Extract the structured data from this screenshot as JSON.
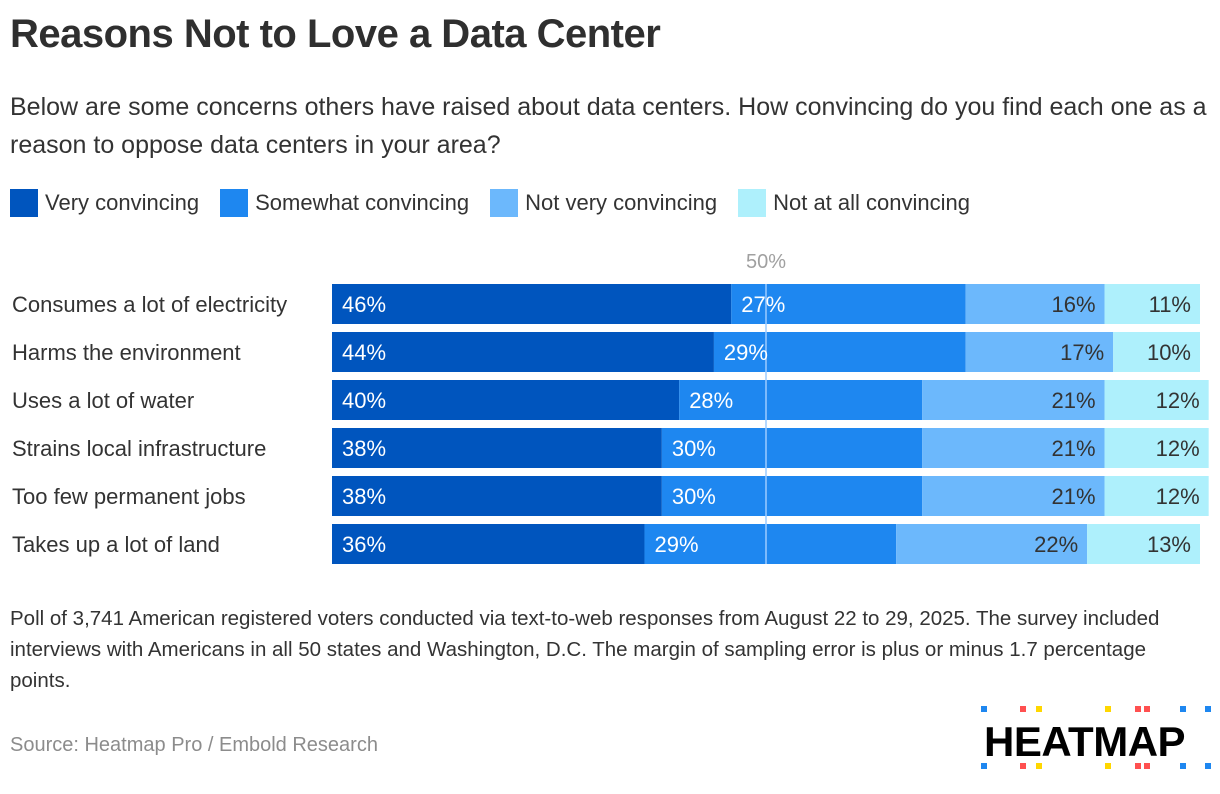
{
  "header": {
    "title": "Reasons Not to Love a Data Center",
    "subtitle": "Below are some concerns others have raised about data centers. How convincing do you find each one as a reason to oppose data centers in your area?"
  },
  "legend": [
    {
      "label": "Very convincing",
      "color": "#0055be"
    },
    {
      "label": "Somewhat convincing",
      "color": "#1e87f0"
    },
    {
      "label": "Not very convincing",
      "color": "#6cb8fc"
    },
    {
      "label": "Not at all convincing",
      "color": "#aef0fc"
    }
  ],
  "chart_data": {
    "type": "bar",
    "orientation": "horizontal",
    "stacked": true,
    "title": "Reasons Not to Love a Data Center",
    "xlabel": "",
    "ylabel": "",
    "xlim": [
      0,
      100
    ],
    "reference_line": {
      "value": 50,
      "label": "50%"
    },
    "categories": [
      "Consumes a lot of electricity",
      "Harms the environment",
      "Uses a lot of water",
      "Strains local infrastructure",
      "Too few permanent jobs",
      "Takes up a lot of land"
    ],
    "series": [
      {
        "name": "Very convincing",
        "color": "#0055be",
        "label_color": "#ffffff",
        "values": [
          46,
          44,
          40,
          38,
          38,
          36
        ]
      },
      {
        "name": "Somewhat convincing",
        "color": "#1e87f0",
        "label_color": "#ffffff",
        "values": [
          27,
          29,
          28,
          30,
          30,
          29
        ]
      },
      {
        "name": "Not very convincing",
        "color": "#6cb8fc",
        "label_color": "#333333",
        "values": [
          16,
          17,
          21,
          21,
          21,
          22
        ]
      },
      {
        "name": "Not at all convincing",
        "color": "#aef0fc",
        "label_color": "#333333",
        "values": [
          11,
          10,
          12,
          12,
          12,
          13
        ]
      }
    ],
    "value_suffix": "%",
    "legend_position": "top-left"
  },
  "footer": {
    "note": "Poll of 3,741 American registered voters conducted via text-to-web responses from August 22 to 29, 2025. The survey included interviews with Americans in all 50 states and Washington, D.C. The margin of sampling error is plus or minus 1.7 percentage points.",
    "source": "Source: Heatmap Pro / Embold Research",
    "logo_text": "HEATMAP",
    "logo_dot_colors": [
      "#1e87f0",
      "#ff5050",
      "#ffd700"
    ]
  }
}
